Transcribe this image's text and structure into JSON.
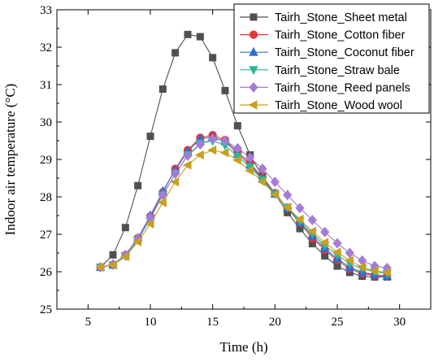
{
  "chart_data": {
    "type": "line",
    "xlabel": "Time (h)",
    "ylabel": "Indoor air temperature (°C)",
    "xlim": [
      2.5,
      32.5
    ],
    "ylim": [
      25,
      33
    ],
    "xticks": [
      5,
      10,
      15,
      20,
      25,
      30
    ],
    "yticks": [
      25,
      26,
      27,
      28,
      29,
      30,
      31,
      32,
      33
    ],
    "grid": false,
    "legend_position": "top-right",
    "x": [
      6,
      7,
      8,
      9,
      10,
      11,
      12,
      13,
      14,
      15,
      16,
      17,
      18,
      19,
      20,
      21,
      22,
      23,
      24,
      25,
      26,
      27,
      28,
      29
    ],
    "series": [
      {
        "name": "Tairh_Stone_Sheet metal",
        "color": "#505050",
        "marker": "square",
        "values": [
          26.12,
          26.45,
          27.18,
          28.3,
          29.62,
          30.88,
          31.85,
          32.34,
          32.28,
          31.72,
          30.84,
          29.9,
          29.12,
          28.55,
          28.08,
          27.58,
          27.15,
          26.75,
          26.42,
          26.15,
          25.98,
          25.88,
          25.86,
          25.86
        ]
      },
      {
        "name": "Tairh_Stone_Cotton fiber",
        "color": "#e8333a",
        "marker": "circle",
        "values": [
          26.12,
          26.18,
          26.45,
          26.9,
          27.48,
          28.12,
          28.75,
          29.25,
          29.58,
          29.65,
          29.52,
          29.2,
          28.9,
          28.52,
          28.1,
          27.7,
          27.3,
          26.9,
          26.58,
          26.3,
          26.08,
          25.95,
          25.9,
          25.88
        ]
      },
      {
        "name": "Tairh_Stone_Coconut fiber",
        "color": "#2f6fd6",
        "marker": "triangle-up",
        "values": [
          26.12,
          26.18,
          26.45,
          26.9,
          27.5,
          28.15,
          28.72,
          29.22,
          29.55,
          29.6,
          29.48,
          29.15,
          28.85,
          28.48,
          28.08,
          27.7,
          27.32,
          26.95,
          26.62,
          26.35,
          26.12,
          25.98,
          25.92,
          25.88
        ]
      },
      {
        "name": "Tairh_Stone_Straw bale",
        "color": "#2ab894",
        "marker": "triangle-down",
        "values": [
          26.12,
          26.18,
          26.42,
          26.85,
          27.42,
          28.05,
          28.62,
          29.12,
          29.42,
          29.5,
          29.38,
          29.08,
          28.8,
          28.45,
          28.08,
          27.72,
          27.36,
          27.02,
          26.7,
          26.45,
          26.22,
          26.08,
          26.0,
          25.95
        ]
      },
      {
        "name": "Tairh_Stone_Reed panels",
        "color": "#a67bd6",
        "marker": "diamond",
        "values": [
          26.12,
          26.2,
          26.45,
          26.88,
          27.45,
          28.05,
          28.62,
          29.1,
          29.4,
          29.55,
          29.5,
          29.3,
          29.05,
          28.75,
          28.4,
          28.05,
          27.7,
          27.38,
          27.06,
          26.76,
          26.5,
          26.3,
          26.15,
          26.1
        ]
      },
      {
        "name": "Tairh_Stone_Wood wool",
        "color": "#c8a020",
        "marker": "triangle-left",
        "values": [
          26.12,
          26.18,
          26.4,
          26.8,
          27.28,
          27.85,
          28.4,
          28.85,
          29.12,
          29.25,
          29.18,
          28.98,
          28.7,
          28.4,
          28.06,
          27.72,
          27.4,
          27.08,
          26.78,
          26.52,
          26.3,
          26.12,
          26.02,
          25.98
        ]
      }
    ]
  }
}
